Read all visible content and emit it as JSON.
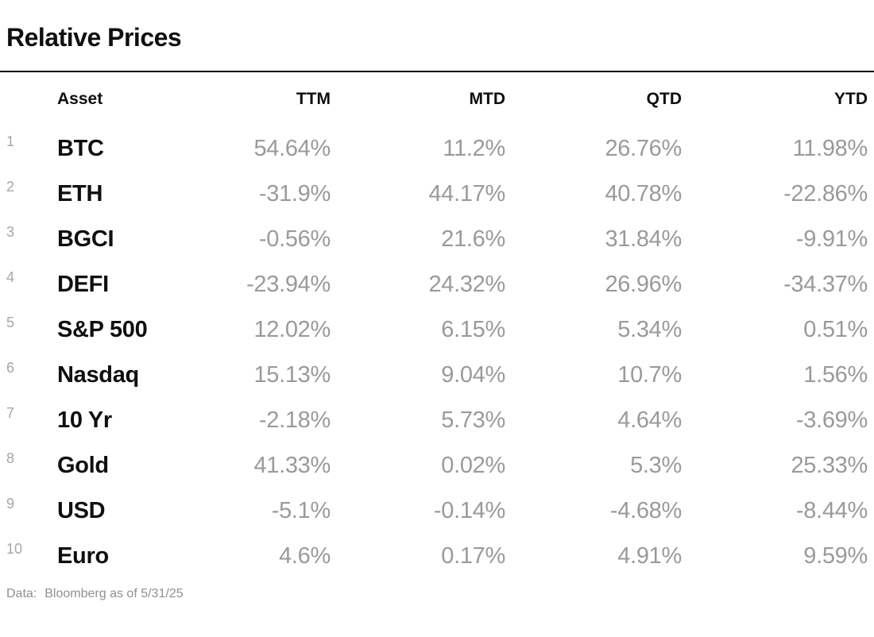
{
  "title": "Relative Prices",
  "table": {
    "columns": {
      "asset": "Asset",
      "ttm": "TTM",
      "mtd": "MTD",
      "qtd": "QTD",
      "ytd": "YTD"
    },
    "rows": [
      {
        "num": "1",
        "asset": "BTC",
        "ttm": "54.64%",
        "mtd": "11.2%",
        "qtd": "26.76%",
        "ytd": "11.98%"
      },
      {
        "num": "2",
        "asset": "ETH",
        "ttm": "-31.9%",
        "mtd": "44.17%",
        "qtd": "40.78%",
        "ytd": "-22.86%"
      },
      {
        "num": "3",
        "asset": "BGCI",
        "ttm": "-0.56%",
        "mtd": "21.6%",
        "qtd": "31.84%",
        "ytd": "-9.91%"
      },
      {
        "num": "4",
        "asset": "DEFI",
        "ttm": "-23.94%",
        "mtd": "24.32%",
        "qtd": "26.96%",
        "ytd": "-34.37%"
      },
      {
        "num": "5",
        "asset": "S&P 500",
        "ttm": "12.02%",
        "mtd": "6.15%",
        "qtd": "5.34%",
        "ytd": "0.51%"
      },
      {
        "num": "6",
        "asset": "Nasdaq",
        "ttm": "15.13%",
        "mtd": "9.04%",
        "qtd": "10.7%",
        "ytd": "1.56%"
      },
      {
        "num": "7",
        "asset": "10 Yr",
        "ttm": "-2.18%",
        "mtd": "5.73%",
        "qtd": "4.64%",
        "ytd": "-3.69%"
      },
      {
        "num": "8",
        "asset": "Gold",
        "ttm": "41.33%",
        "mtd": "0.02%",
        "qtd": "5.3%",
        "ytd": "25.33%"
      },
      {
        "num": "9",
        "asset": "USD",
        "ttm": "-5.1%",
        "mtd": "-0.14%",
        "qtd": "-4.68%",
        "ytd": "-8.44%"
      },
      {
        "num": "10",
        "asset": "Euro",
        "ttm": "4.6%",
        "mtd": "0.17%",
        "qtd": "4.91%",
        "ytd": "9.59%"
      }
    ]
  },
  "footer": {
    "label": "Data:",
    "text": "Bloomberg as of 5/31/25"
  },
  "colors": {
    "text_black": "#0f0f0f",
    "value_gray": "#9a9a9a",
    "rownum_gray": "#a6a6a6",
    "footer_gray": "#8f8f8f",
    "rule_black": "#000000"
  },
  "chart_data": {
    "type": "table",
    "title": "Relative Prices",
    "columns": [
      "Asset",
      "TTM",
      "MTD",
      "QTD",
      "YTD"
    ],
    "units": "%",
    "rows": [
      [
        "BTC",
        54.64,
        11.2,
        26.76,
        11.98
      ],
      [
        "ETH",
        -31.9,
        44.17,
        40.78,
        -22.86
      ],
      [
        "BGCI",
        -0.56,
        21.6,
        31.84,
        -9.91
      ],
      [
        "DEFI",
        -23.94,
        24.32,
        26.96,
        -34.37
      ],
      [
        "S&P 500",
        12.02,
        6.15,
        5.34,
        0.51
      ],
      [
        "Nasdaq",
        15.13,
        9.04,
        10.7,
        1.56
      ],
      [
        "10 Yr",
        -2.18,
        5.73,
        4.64,
        -3.69
      ],
      [
        "Gold",
        41.33,
        0.02,
        5.3,
        25.33
      ],
      [
        "USD",
        -5.1,
        -0.14,
        -4.68,
        -8.44
      ],
      [
        "Euro",
        4.6,
        0.17,
        4.91,
        9.59
      ]
    ],
    "source": "Data: Bloomberg as of 5/31/25"
  }
}
